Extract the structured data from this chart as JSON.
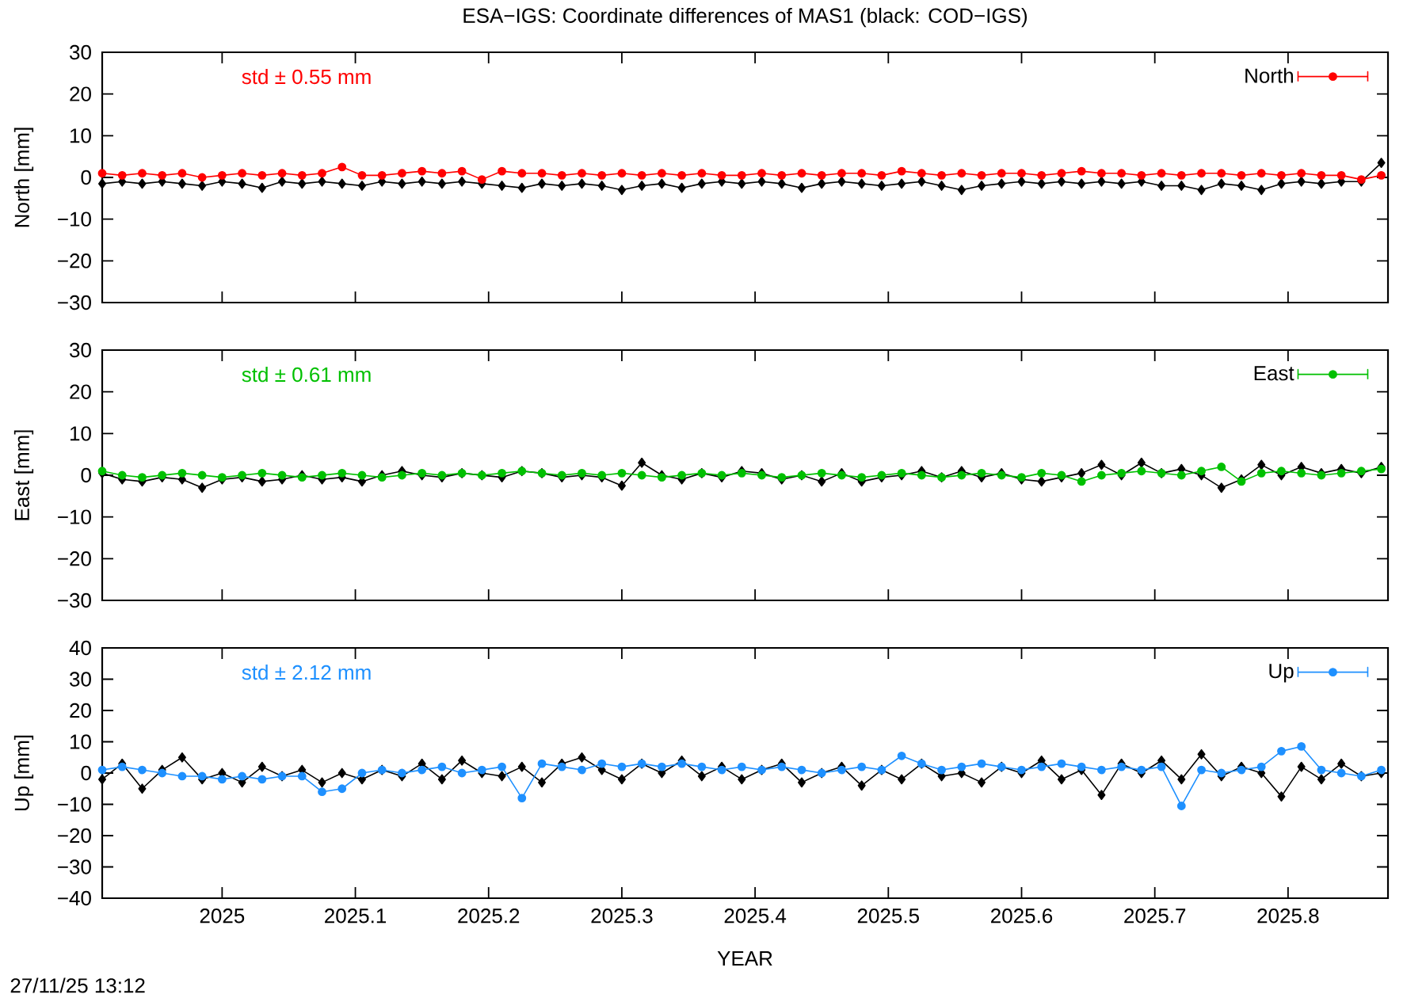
{
  "chart_data": [
    {
      "type": "line",
      "title": "ESA−IGS: Coordinate differences of MAS1 (black: COD−IGS)",
      "ylabel": "North [mm]",
      "annotations": [
        "std ± 0.55 mm"
      ],
      "legend": "top right",
      "tick_labels": "y",
      "xlim": [
        2024.91,
        2025.875
      ],
      "xticks": [
        2025,
        2025.1,
        2025.2,
        2025.3,
        2025.4,
        2025.5,
        2025.6,
        2025.7,
        2025.8
      ],
      "ylim": [
        -30,
        30
      ],
      "yticks": [
        {
          "value": -30,
          "label": "−30"
        },
        {
          "value": -20,
          "label": "−20"
        },
        {
          "value": -10,
          "label": "−10"
        },
        0,
        10,
        20,
        30
      ],
      "x": [
        2024.91,
        2024.925,
        2024.94,
        2024.955,
        2024.97,
        2024.985,
        2025.0,
        2025.015,
        2025.03,
        2025.045,
        2025.06,
        2025.075,
        2025.09,
        2025.105,
        2025.12,
        2025.135,
        2025.15,
        2025.165,
        2025.18,
        2025.195,
        2025.21,
        2025.225,
        2025.24,
        2025.255,
        2025.27,
        2025.285,
        2025.3,
        2025.315,
        2025.33,
        2025.345,
        2025.36,
        2025.375,
        2025.39,
        2025.405,
        2025.42,
        2025.435,
        2025.45,
        2025.465,
        2025.48,
        2025.495,
        2025.51,
        2025.525,
        2025.54,
        2025.555,
        2025.57,
        2025.585,
        2025.6,
        2025.615,
        2025.63,
        2025.645,
        2025.66,
        2025.675,
        2025.69,
        2025.705,
        2025.72,
        2025.735,
        2025.75,
        2025.765,
        2025.78,
        2025.795,
        2025.81,
        2025.825,
        2025.84,
        2025.855,
        2025.87
      ],
      "series": [
        {
          "color": "#000000",
          "marker": "diamond",
          "values": [
            -1.5,
            -1,
            -1.5,
            -1,
            -1.5,
            -2,
            -1,
            -1.5,
            -2.5,
            -1,
            -1.5,
            -1,
            -1.5,
            -2,
            -1,
            -1.5,
            -1,
            -1.5,
            -1,
            -1.5,
            -2,
            -2.5,
            -1.5,
            -2,
            -1.5,
            -2,
            -3,
            -2,
            -1.5,
            -2.5,
            -1.5,
            -1,
            -1.5,
            -1,
            -1.5,
            -2.5,
            -1.5,
            -1,
            -1.5,
            -2,
            -1.5,
            -1,
            -2,
            -3,
            -2,
            -1.5,
            -1,
            -1.5,
            -1,
            -1.5,
            -1,
            -1.5,
            -1,
            -2,
            -2,
            -3,
            -1.5,
            -2,
            -3,
            -1.5,
            -1,
            -1.5,
            -1,
            -1,
            3.5
          ]
        },
        {
          "name": "North",
          "color": "#ff0000",
          "marker": "circle",
          "values": [
            1,
            0.5,
            1,
            0.5,
            1,
            0,
            0.5,
            1,
            0.5,
            1,
            0.5,
            1,
            2.5,
            0.5,
            0.5,
            1,
            1.5,
            1,
            1.5,
            -0.5,
            1.5,
            1,
            1,
            0.5,
            1,
            0.5,
            1,
            0.5,
            1,
            0.5,
            1,
            0.5,
            0.5,
            1,
            0.5,
            1,
            0.5,
            1,
            1,
            0.5,
            1.5,
            1,
            0.5,
            1,
            0.5,
            1,
            1,
            0.5,
            1,
            1.5,
            1,
            1,
            0.5,
            1,
            0.5,
            1,
            1,
            0.5,
            1,
            0.5,
            1,
            0.5,
            0.5,
            -0.5,
            0.5
          ]
        }
      ]
    },
    {
      "type": "line",
      "ylabel": "East [mm]",
      "annotations": [
        "std ± 0.61 mm"
      ],
      "legend": "top right",
      "tick_labels": "y",
      "xlim": [
        2024.91,
        2025.875
      ],
      "xticks": [
        2025,
        2025.1,
        2025.2,
        2025.3,
        2025.4,
        2025.5,
        2025.6,
        2025.7,
        2025.8
      ],
      "ylim": [
        -30,
        30
      ],
      "yticks": [
        {
          "value": -30,
          "label": "−30"
        },
        {
          "value": -20,
          "label": "−20"
        },
        {
          "value": -10,
          "label": "−10"
        },
        0,
        10,
        20,
        30
      ],
      "x": [
        2024.91,
        2024.925,
        2024.94,
        2024.955,
        2024.97,
        2024.985,
        2025.0,
        2025.015,
        2025.03,
        2025.045,
        2025.06,
        2025.075,
        2025.09,
        2025.105,
        2025.12,
        2025.135,
        2025.15,
        2025.165,
        2025.18,
        2025.195,
        2025.21,
        2025.225,
        2025.24,
        2025.255,
        2025.27,
        2025.285,
        2025.3,
        2025.315,
        2025.33,
        2025.345,
        2025.36,
        2025.375,
        2025.39,
        2025.405,
        2025.42,
        2025.435,
        2025.45,
        2025.465,
        2025.48,
        2025.495,
        2025.51,
        2025.525,
        2025.54,
        2025.555,
        2025.57,
        2025.585,
        2025.6,
        2025.615,
        2025.63,
        2025.645,
        2025.66,
        2025.675,
        2025.69,
        2025.705,
        2025.72,
        2025.735,
        2025.75,
        2025.765,
        2025.78,
        2025.795,
        2025.81,
        2025.825,
        2025.84,
        2025.855,
        2025.87
      ],
      "series": [
        {
          "color": "#000000",
          "marker": "diamond",
          "values": [
            0.5,
            -1,
            -1.5,
            -0.5,
            -1,
            -3,
            -1,
            -0.5,
            -1.5,
            -1,
            0,
            -1,
            -0.5,
            -1.5,
            0,
            1,
            0,
            -0.5,
            0.5,
            0,
            -0.5,
            1,
            0.5,
            -0.5,
            0,
            -0.5,
            -2.5,
            3,
            0,
            -1,
            0.5,
            -0.5,
            1,
            0.5,
            -1,
            0,
            -1.5,
            0.5,
            -1.5,
            -0.5,
            0,
            1,
            -0.5,
            1,
            -0.5,
            0.5,
            -1,
            -1.5,
            -0.5,
            0.5,
            2.5,
            0,
            3,
            0.5,
            1.5,
            0,
            -3,
            -1,
            2.5,
            0,
            2,
            0.5,
            1.5,
            0.5,
            2
          ]
        },
        {
          "name": "East",
          "color": "#00c000",
          "marker": "circle",
          "values": [
            1,
            0,
            -0.5,
            0,
            0.5,
            0,
            -0.5,
            0,
            0.5,
            0,
            -0.5,
            0,
            0.5,
            0,
            -0.5,
            0,
            0.5,
            0,
            0.5,
            0,
            0.5,
            1,
            0.5,
            0,
            0.5,
            0,
            0.5,
            0,
            -0.5,
            0,
            0.5,
            0,
            0.5,
            0,
            -0.5,
            0,
            0.5,
            0,
            -0.5,
            0,
            0.5,
            0,
            -0.5,
            0,
            0.5,
            0,
            -0.5,
            0.5,
            0,
            -1.5,
            0,
            0.5,
            1,
            0.5,
            0,
            1,
            2,
            -1.5,
            0.5,
            1,
            0.5,
            0,
            0.5,
            1,
            1.5
          ]
        }
      ]
    },
    {
      "type": "line",
      "ylabel": "Up [mm]",
      "xlabel": "YEAR",
      "annotations": [
        "std ± 2.12 mm",
        "27/11/25 13:12"
      ],
      "legend": "top right",
      "xlim": [
        2024.91,
        2025.875
      ],
      "xticks": [
        2025,
        2025.1,
        2025.2,
        2025.3,
        2025.4,
        2025.5,
        2025.6,
        2025.7,
        2025.8
      ],
      "ylim": [
        -40,
        40
      ],
      "yticks": [
        {
          "value": -40,
          "label": "−40"
        },
        {
          "value": -30,
          "label": "−30"
        },
        {
          "value": -20,
          "label": "−20"
        },
        {
          "value": -10,
          "label": "−10"
        },
        0,
        10,
        20,
        30,
        40
      ],
      "x": [
        2024.91,
        2024.925,
        2024.94,
        2024.955,
        2024.97,
        2024.985,
        2025.0,
        2025.015,
        2025.03,
        2025.045,
        2025.06,
        2025.075,
        2025.09,
        2025.105,
        2025.12,
        2025.135,
        2025.15,
        2025.165,
        2025.18,
        2025.195,
        2025.21,
        2025.225,
        2025.24,
        2025.255,
        2025.27,
        2025.285,
        2025.3,
        2025.315,
        2025.33,
        2025.345,
        2025.36,
        2025.375,
        2025.39,
        2025.405,
        2025.42,
        2025.435,
        2025.45,
        2025.465,
        2025.48,
        2025.495,
        2025.51,
        2025.525,
        2025.54,
        2025.555,
        2025.57,
        2025.585,
        2025.6,
        2025.615,
        2025.63,
        2025.645,
        2025.66,
        2025.675,
        2025.69,
        2025.705,
        2025.72,
        2025.735,
        2025.75,
        2025.765,
        2025.78,
        2025.795,
        2025.81,
        2025.825,
        2025.84,
        2025.855,
        2025.87
      ],
      "series": [
        {
          "color": "#000000",
          "marker": "diamond",
          "values": [
            -2,
            3,
            -5,
            1,
            5,
            -2,
            0,
            -3,
            2,
            -1,
            1,
            -3,
            0,
            -2,
            1,
            -1,
            3,
            -2,
            4,
            0,
            -1,
            2,
            -3,
            3,
            5,
            1,
            -2,
            3,
            0,
            4,
            -1,
            2,
            -2,
            1,
            3,
            -3,
            0,
            2,
            -4,
            1,
            -2,
            3,
            -1,
            0,
            -3,
            2,
            0,
            4,
            -2,
            1,
            -7,
            3,
            0,
            4,
            -2,
            6,
            -1,
            2,
            0,
            -7.5,
            2,
            -2,
            3,
            -1,
            0
          ]
        },
        {
          "name": "Up",
          "color": "#1e90ff",
          "marker": "circle",
          "values": [
            1,
            2,
            1,
            0,
            -1,
            -1,
            -2,
            -1,
            -2,
            -1,
            -1,
            -6,
            -5,
            0,
            1,
            0,
            1,
            2,
            0,
            1,
            2,
            -8,
            3,
            2,
            1,
            3,
            2,
            3,
            2,
            3,
            2,
            1,
            2,
            1,
            2,
            1,
            0,
            1,
            2,
            1,
            5.5,
            3,
            1,
            2,
            3,
            2,
            1,
            2,
            3,
            2,
            1,
            2,
            1,
            2,
            -10.5,
            1,
            0,
            1,
            2,
            7,
            8.5,
            1,
            0,
            -1,
            1
          ]
        }
      ]
    }
  ]
}
